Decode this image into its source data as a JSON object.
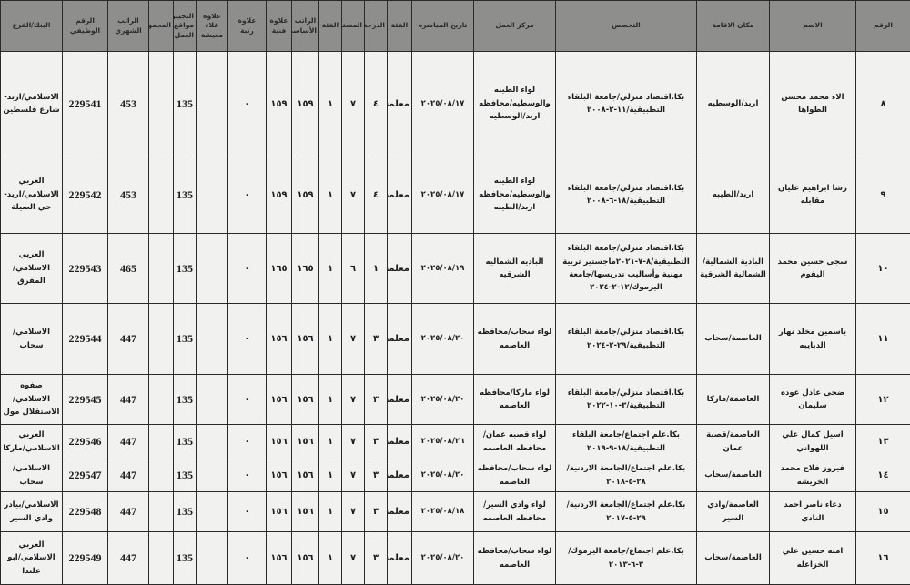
{
  "headers": [
    "الرقم",
    "الاسم",
    "مكان الاقامة",
    "التخصص",
    "مركز العمل",
    "تاريخ المباشرة",
    "الفئة",
    "الدرجة",
    "المستوى",
    "الفئة",
    "الراتب الأساسي",
    "علاوة فنية",
    "علاوة رتبة",
    "علاوة غلاء معيشة",
    "التجيير/مواقع العمل",
    "المجموع",
    "الراتب الشهري",
    "الرقم الوظيفي",
    "البنك/الفرع"
  ],
  "rows": [
    [
      "٨",
      "الاء محمد محسن الطواها",
      "اربد/الوسطيه",
      "بكا.اقتصاد منزلي/جامعة البلقاء التطبيقية/١١-٢-٢٠٠٨",
      "لواء الطيبه والوسطيه/محافظه اربد/الوسطيه",
      "٢٠٢٥/٠٨/١٧",
      "معلمة",
      "٤",
      "٧",
      "١",
      "١٥٩",
      "١٥٩",
      "٠",
      "",
      "135",
      "",
      "453",
      "229541",
      "الاسلامي/اربد-شارع فلسطين"
    ],
    [
      "٩",
      "رشا ابراهيم عليان مقابله",
      "اربد/الطيبه",
      "بكا.اقتصاد منزلي/جامعة البلقاء التطبيقية/١٨-٦-٢٠٠٨",
      "لواء الطيبه والوسطيه/محافظه اربد/الطيبه",
      "٢٠٢٥/٠٨/١٧",
      "معلمة",
      "٤",
      "٧",
      "١",
      "١٥٩",
      "١٥٩",
      "٠",
      "",
      "135",
      "",
      "453",
      "229542",
      "العربي الاسلامي/اربد-حي الصيلة"
    ],
    [
      "١٠",
      "سجى حسين محمد اليقوم",
      "البادية الشمالية/الشمالية الشرقية",
      "بكا.اقتصاد منزلي/جامعة البلقاء التطبيقية/٨-٧-٢٠٢١ماجستير تربية مهنية وأساليب تدريسها/جامعة اليرموك/١٢-٢-٢٠٢٤",
      "الباديه الشماليه الشرقيه",
      "٢٠٢٥/٠٨/١٩",
      "معلمة",
      "١",
      "٦",
      "١",
      "١٦٥",
      "١٦٥",
      "٠",
      "",
      "135",
      "",
      "465",
      "229543",
      "العربي الاسلامي/المفرق"
    ],
    [
      "١١",
      "ياسمين مخلد نهار الدبايبه",
      "العاصمة/سحاب",
      "بكا.اقتصاد منزلي/جامعة البلقاء التطبيقية/٢٩-٢-٢٠٢٤",
      "لواء سحاب/محافظه العاصمه",
      "٢٠٢٥/٠٨/٢٠",
      "معلمة",
      "٣",
      "٧",
      "١",
      "١٥٦",
      "١٥٦",
      "٠",
      "",
      "135",
      "",
      "447",
      "229544",
      "الاسلامي/سحاب"
    ],
    [
      "١٢",
      "ضحى عادل عوده سليمان",
      "العاصمة/ماركا",
      "بكا.اقتصاد منزلي/جامعة البلقاء التطبيقية/٣-١٠-٢٠٢٢",
      "لواء ماركا/محافظه العاصمه",
      "٢٠٢٥/٠٨/٢٠",
      "معلمة",
      "٣",
      "٧",
      "١",
      "١٥٦",
      "١٥٦",
      "٠",
      "",
      "135",
      "",
      "447",
      "229545",
      "صفوه الاسلامي/الاستقلال مول"
    ],
    [
      "١٣",
      "اسيل كمال علي اللهواني",
      "العاصمة/قصبة عمان",
      "بكا.علم اجتماع/جامعة البلقاء التطبيقية/١٨-٩-٢٠١٩",
      "لواء قصبه عمان/محافظه العاصمه",
      "٢٠٢٥/٠٨/٢٦",
      "معلمة",
      "٣",
      "٧",
      "١",
      "١٥٦",
      "١٥٦",
      "٠",
      "",
      "135",
      "",
      "447",
      "229546",
      "العربي الاسلامي/ماركا"
    ],
    [
      "١٤",
      "فيروز فلاح محمد الخريشه",
      "العاصمة/سحاب",
      "بكا.علم اجتماع/الجامعة الاردنية/٢٨-٥-٢٠١٨",
      "لواء سحاب/محافظه العاصمه",
      "٢٠٢٥/٠٨/٢٠",
      "معلمة",
      "٣",
      "٧",
      "١",
      "١٥٦",
      "١٥٦",
      "٠",
      "",
      "135",
      "",
      "447",
      "229547",
      "الاسلامي/سحاب"
    ],
    [
      "١٥",
      "دعاء ناصر احمد النادي",
      "العاصمة/وادي السير",
      "بكا.علم اجتماع/الجامعة الاردنية/٢٩-٥-٢٠١٧",
      "لواء وادي السير/محافظه العاصمه",
      "٢٠٢٥/٠٨/١٨",
      "معلمة",
      "٣",
      "٧",
      "١",
      "١٥٦",
      "١٥٦",
      "٠",
      "",
      "135",
      "",
      "447",
      "229548",
      "الاسلامي/بيادر وادي السير"
    ],
    [
      "١٦",
      "امنه حسين علي الخزاعله",
      "العاصمة/سحاب",
      "بكا.علم اجتماع/جامعة اليرموك/٣-٦-٢٠١٣",
      "لواء سحاب/محافظه العاصمه",
      "٢٠٢٥/٠٨/٢٠",
      "معلمة",
      "٣",
      "٧",
      "١",
      "١٥٦",
      "١٥٦",
      "٠",
      "",
      "135",
      "",
      "447",
      "229549",
      "العربي الاسلامي/ابو علندا"
    ]
  ]
}
